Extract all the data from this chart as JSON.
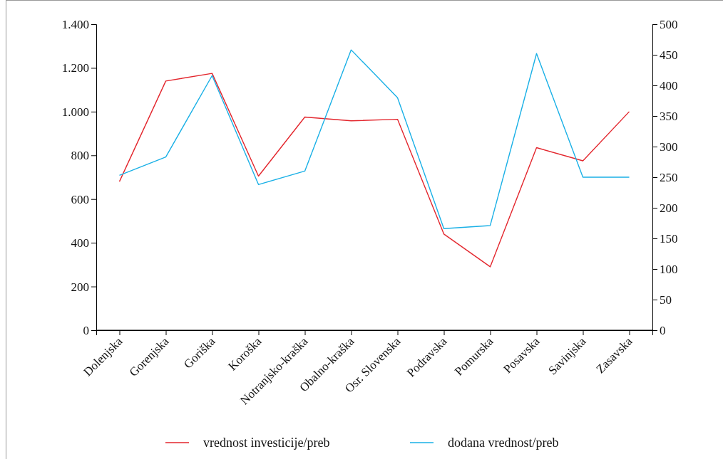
{
  "chart_data": {
    "type": "line",
    "categories": [
      "Dolenjska",
      "Gorenjska",
      "Goriška",
      "Koroška",
      "Notranjsko-kraška",
      "Obalno-kraška",
      "Osr. Slovenska",
      "Podravska",
      "Pomurska",
      "Posavska",
      "Savinjska",
      "Zasavska"
    ],
    "series": [
      {
        "name": "vrednost investicije/preb",
        "color": "#e3262d",
        "values": [
          680,
          1140,
          1175,
          705,
          975,
          958,
          965,
          440,
          290,
          835,
          775,
          1000
        ]
      },
      {
        "name": "dodana vrednost/preb",
        "color": "#1ab0e6",
        "axis": "y2",
        "values": [
          253,
          283,
          416,
          238,
          260,
          458,
          380,
          166,
          171,
          452,
          250,
          250
        ]
      }
    ],
    "ylim": [
      0,
      1400
    ],
    "yticks": [
      {
        "value": 0,
        "label": "0"
      },
      {
        "value": 200,
        "label": "200"
      },
      {
        "value": 400,
        "label": "400"
      },
      {
        "value": 600,
        "label": "600"
      },
      {
        "value": 800,
        "label": "800"
      },
      {
        "value": 1000,
        "label": "1.000"
      },
      {
        "value": 1200,
        "label": "1.200"
      },
      {
        "value": 1400,
        "label": "1.400"
      }
    ],
    "y2lim": [
      0,
      500
    ],
    "y2ticks": [
      0,
      50,
      100,
      150,
      200,
      250,
      300,
      350,
      400,
      450,
      500
    ],
    "grid": false,
    "legend": "bottom",
    "marker": "none",
    "line_style": "solid"
  }
}
